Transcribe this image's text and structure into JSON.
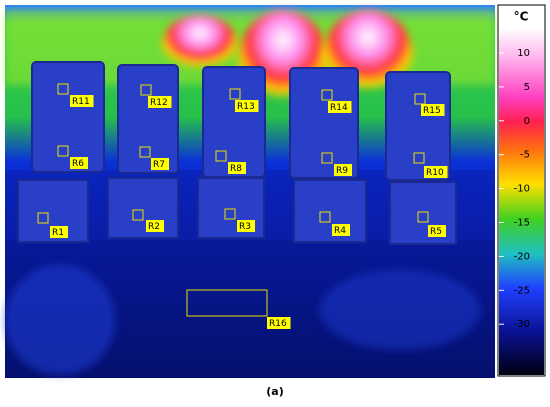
{
  "colorbar": {
    "unit": "°C",
    "ticks": [
      "10",
      "5",
      "0",
      "-5",
      "-10",
      "-15",
      "-20",
      "-25",
      "-30"
    ]
  },
  "regions": [
    "R11",
    "R12",
    "R13",
    "R14",
    "R15",
    "R6",
    "R7",
    "R8",
    "R9",
    "R10",
    "R1",
    "R2",
    "R3",
    "R4",
    "R5",
    "R16"
  ],
  "caption": "(a)"
}
